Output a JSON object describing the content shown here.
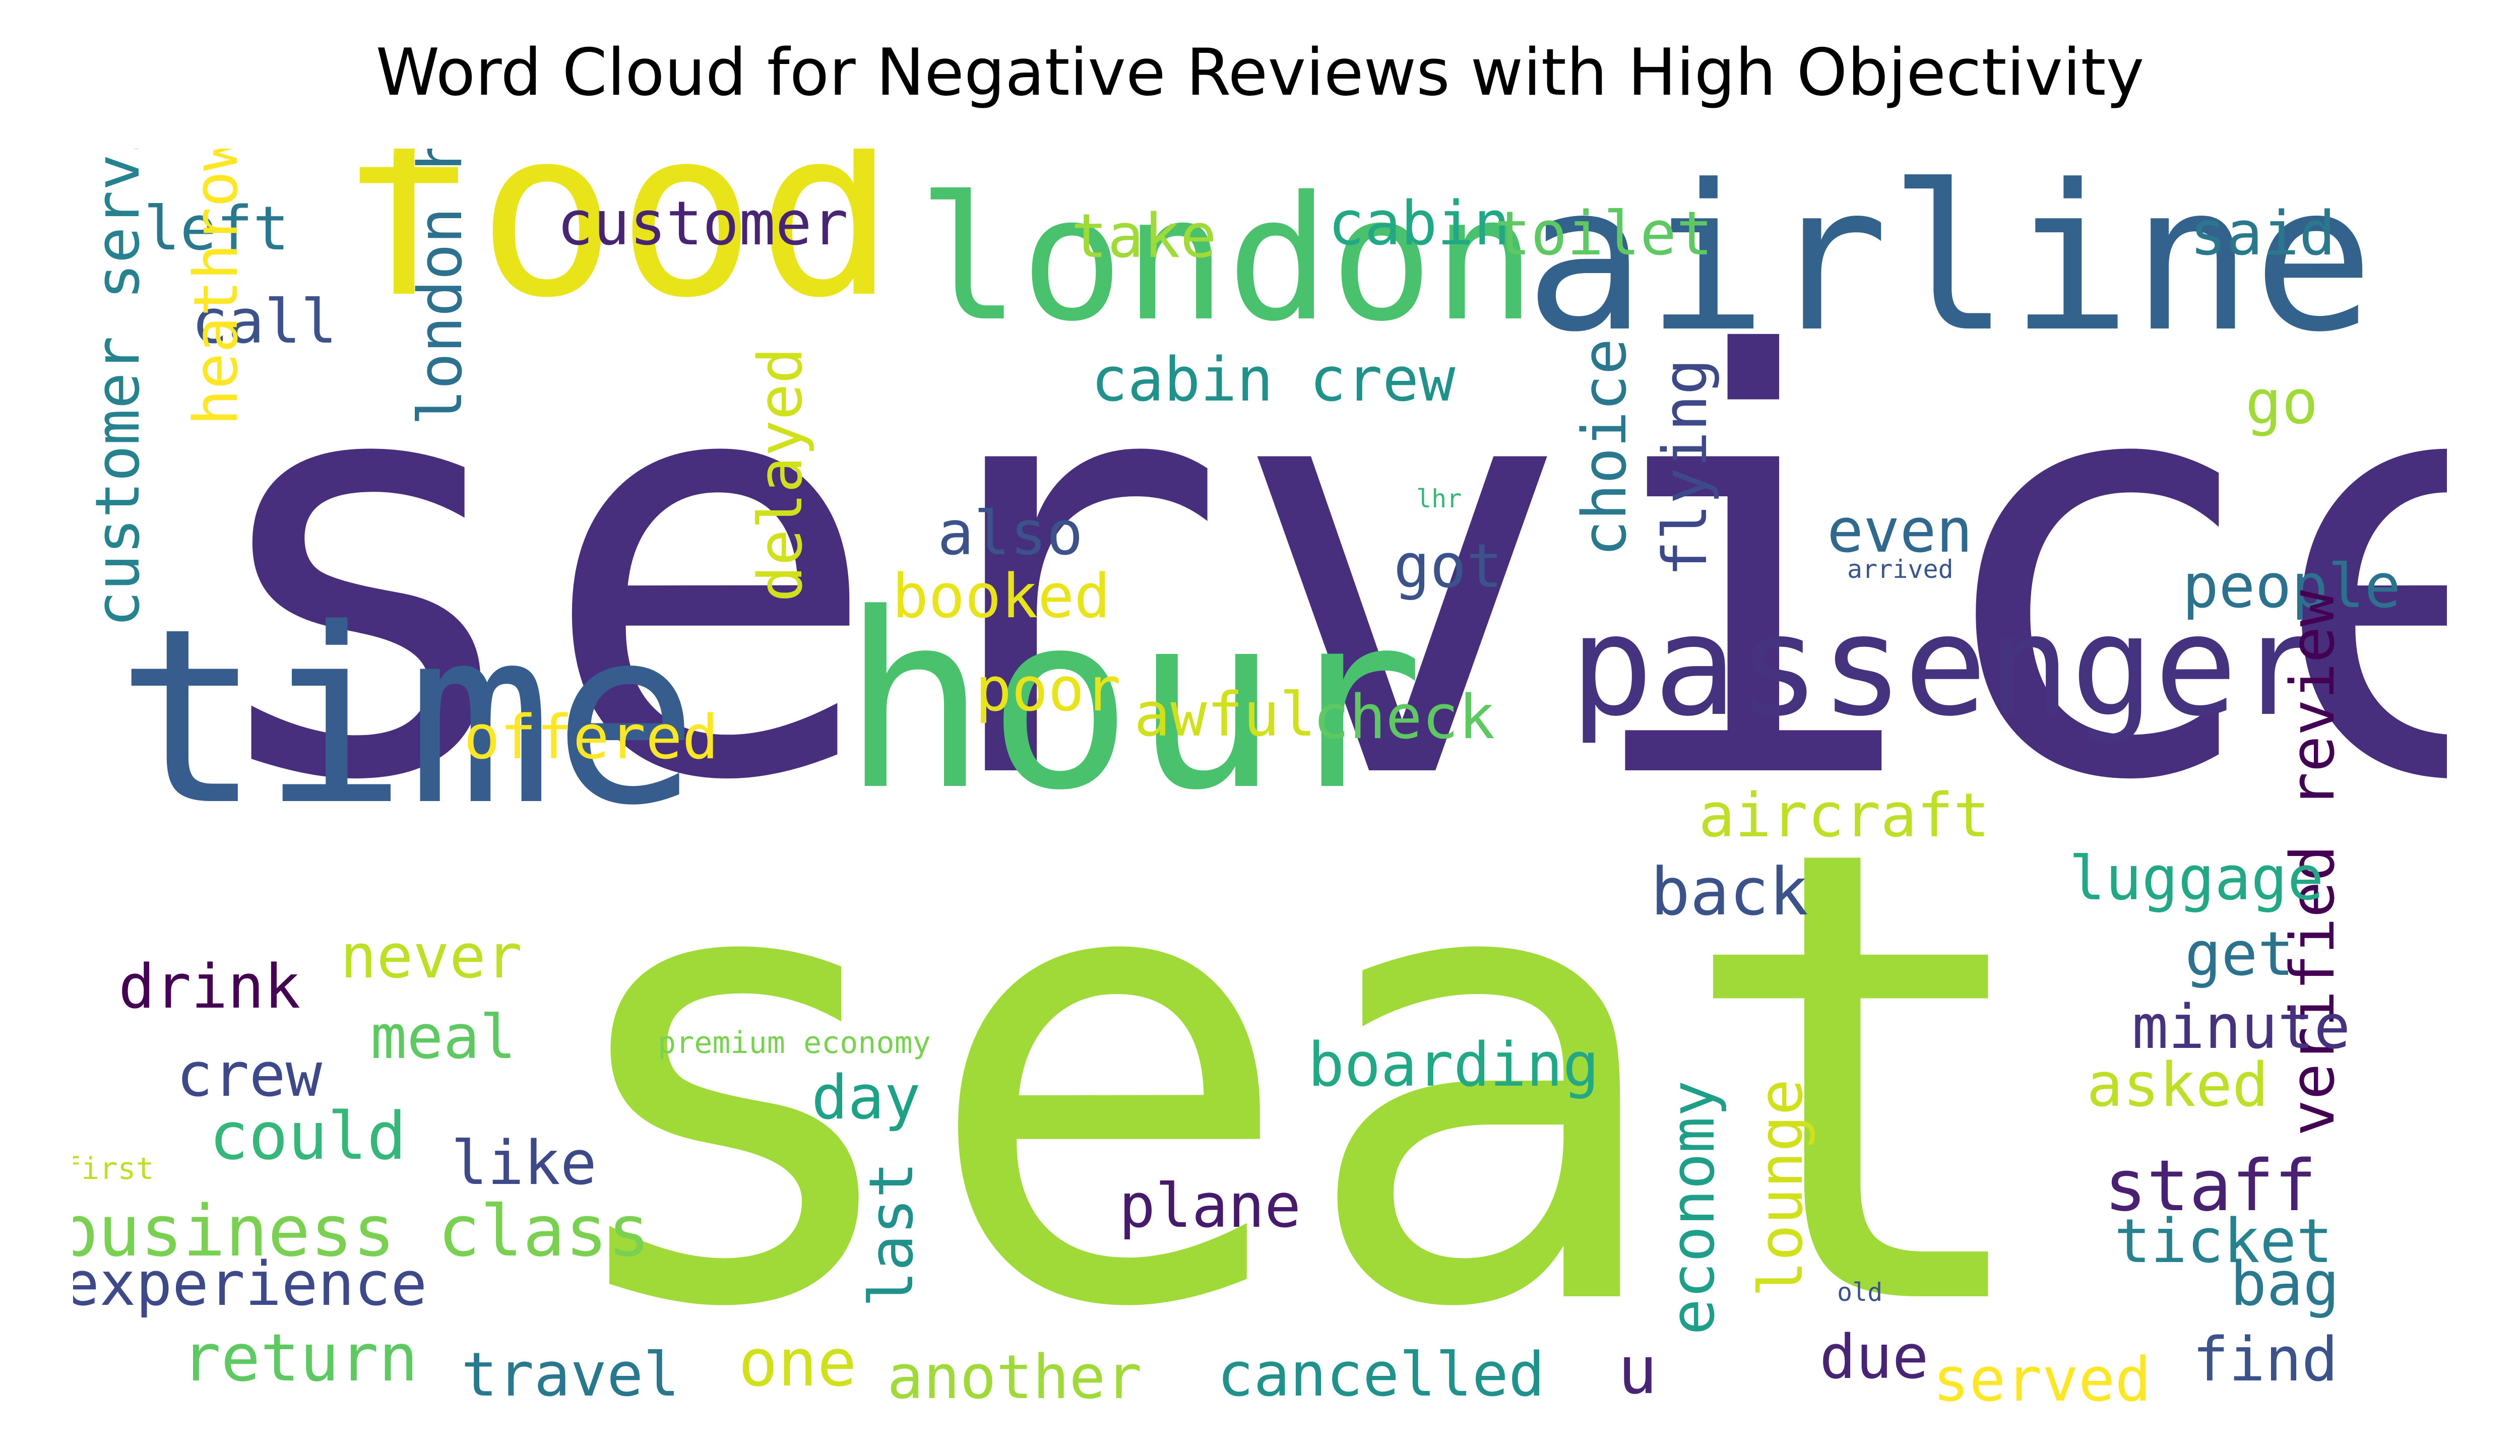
{
  "title": "Word Cloud for Negative Reviews with High Objectivity",
  "words": [
    {
      "text": "service",
      "color": "#472f7d"
    },
    {
      "text": "seat",
      "color": "#a0da39"
    },
    {
      "text": "food",
      "color": "#e8e419"
    },
    {
      "text": "airline",
      "color": "#33628d"
    },
    {
      "text": "london",
      "color": "#4ac16d"
    },
    {
      "text": "hour",
      "color": "#4ac16d"
    },
    {
      "text": "time",
      "color": "#365d8d"
    },
    {
      "text": "passenger",
      "color": "#46337f"
    },
    {
      "text": "left",
      "color": "#2a788e"
    },
    {
      "text": "customer",
      "color": "#482475"
    },
    {
      "text": "take",
      "color": "#a0da39"
    },
    {
      "text": "cabin",
      "color": "#22a884"
    },
    {
      "text": "toilet",
      "color": "#5ec962"
    },
    {
      "text": "said",
      "color": "#2a788e"
    },
    {
      "text": "call",
      "color": "#3b528b"
    },
    {
      "text": "cabin crew",
      "color": "#21918c"
    },
    {
      "text": "go",
      "color": "#a0da39"
    },
    {
      "text": "heathrow",
      "color": "#fde725"
    },
    {
      "text": "london heathrow",
      "color": "#2c728e"
    },
    {
      "text": "customer service",
      "color": "#26828e"
    },
    {
      "text": "delayed",
      "color": "#d0e11c"
    },
    {
      "text": "choice",
      "color": "#2a788e"
    },
    {
      "text": "flying",
      "color": "#3e4989"
    },
    {
      "text": "also",
      "color": "#3b528b"
    },
    {
      "text": "booked",
      "color": "#e8e419"
    },
    {
      "text": "got",
      "color": "#3b528b"
    },
    {
      "text": "even",
      "color": "#31688e"
    },
    {
      "text": "lhr",
      "color": "#35b779"
    },
    {
      "text": "arrived",
      "color": "#39568c"
    },
    {
      "text": "people",
      "color": "#2c728e"
    },
    {
      "text": "poor",
      "color": "#e8e419"
    },
    {
      "text": "awful",
      "color": "#d0e11c"
    },
    {
      "text": "check",
      "color": "#5ec962"
    },
    {
      "text": "offered",
      "color": "#fde725"
    },
    {
      "text": "aircraft",
      "color": "#bddf26"
    },
    {
      "text": "verified review",
      "color": "#440154"
    },
    {
      "text": "back",
      "color": "#3b528b"
    },
    {
      "text": "luggage",
      "color": "#22a884"
    },
    {
      "text": "get",
      "color": "#2c728e"
    },
    {
      "text": "drink",
      "color": "#440154"
    },
    {
      "text": "never",
      "color": "#bddf26"
    },
    {
      "text": "meal",
      "color": "#5ec962"
    },
    {
      "text": "minute",
      "color": "#46337f"
    },
    {
      "text": "crew",
      "color": "#3e4989"
    },
    {
      "text": "premium economy",
      "color": "#7ad151"
    },
    {
      "text": "boarding",
      "color": "#22a884"
    },
    {
      "text": "day",
      "color": "#1fa188"
    },
    {
      "text": "asked",
      "color": "#bddf26"
    },
    {
      "text": "could",
      "color": "#35b779"
    },
    {
      "text": "like",
      "color": "#3e4989"
    },
    {
      "text": "first",
      "color": "#bddf26"
    },
    {
      "text": "business class",
      "color": "#7ad151"
    },
    {
      "text": "last",
      "color": "#21918c"
    },
    {
      "text": "plane",
      "color": "#481a6c"
    },
    {
      "text": "economy",
      "color": "#1f9e89"
    },
    {
      "text": "lounge",
      "color": "#d0e11c"
    },
    {
      "text": "staff",
      "color": "#482173"
    },
    {
      "text": "ticket",
      "color": "#26828e"
    },
    {
      "text": "experience",
      "color": "#3e4989"
    },
    {
      "text": "old",
      "color": "#3b528b"
    },
    {
      "text": "bag",
      "color": "#2a788e"
    },
    {
      "text": "return",
      "color": "#5ec962"
    },
    {
      "text": "travel",
      "color": "#2a788e"
    },
    {
      "text": "one",
      "color": "#d0e11c"
    },
    {
      "text": "another",
      "color": "#a0da39"
    },
    {
      "text": "cancelled",
      "color": "#21918c"
    },
    {
      "text": "u",
      "color": "#482475"
    },
    {
      "text": "due",
      "color": "#482475"
    },
    {
      "text": "served",
      "color": "#fde725"
    },
    {
      "text": "find",
      "color": "#3b528b"
    }
  ]
}
